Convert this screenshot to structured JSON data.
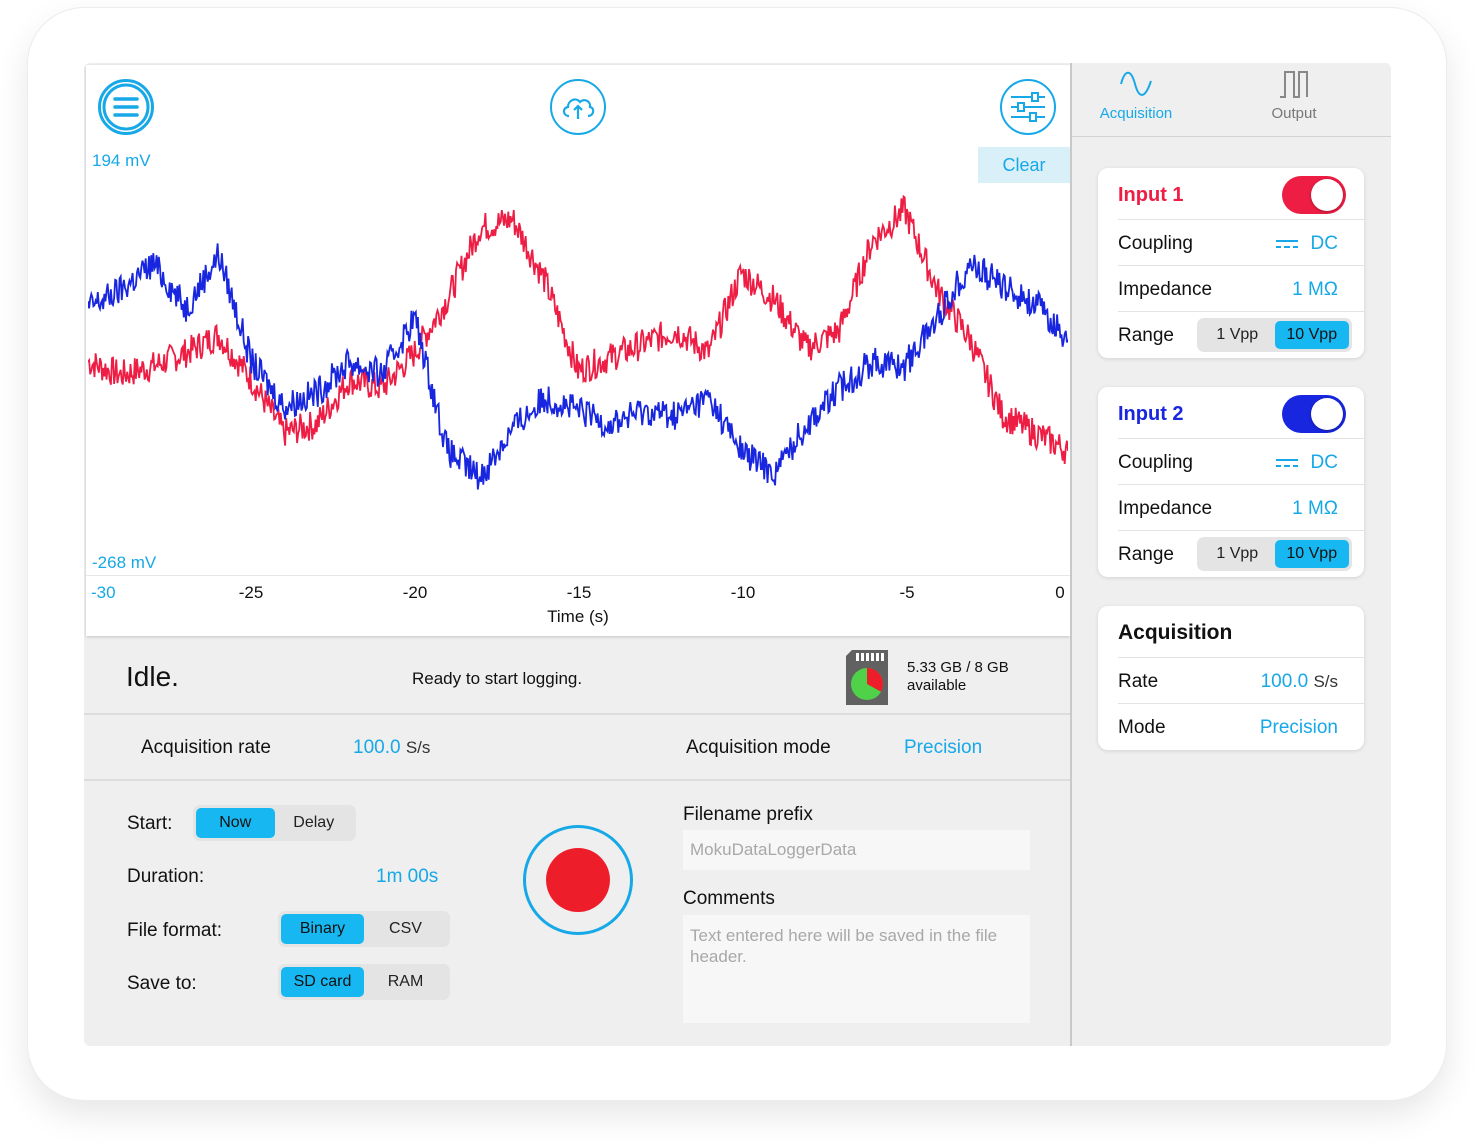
{
  "colors": {
    "accent": "#17a8e8",
    "channel1": "#ee1d44",
    "channel2": "#1826e0",
    "record": "#ee1d2a"
  },
  "toolbar": {
    "menu_icon": "menu-icon",
    "upload_icon": "cloud-upload-icon",
    "settings_icon": "sliders-icon",
    "clear_label": "Clear"
  },
  "chart_data": {
    "type": "line",
    "ymax_label": "194 mV",
    "ymin_label": "-268 mV",
    "ylim": [
      -268,
      194
    ],
    "xlim": [
      -30,
      0
    ],
    "x_ticks": [
      "-30",
      "-25",
      "-20",
      "-15",
      "-10",
      "-5",
      "0"
    ],
    "xlabel": "Time (s)",
    "series": [
      {
        "color": "#ee1d44",
        "x": [
          -30,
          -29,
          -28,
          -27,
          -26,
          -25,
          -24,
          -23,
          -22,
          -21,
          -20,
          -19,
          -18,
          -17,
          -16,
          -15,
          -14,
          -13,
          -12,
          -11,
          -10,
          -9,
          -8,
          -7,
          -6,
          -5,
          -4,
          -3,
          -2,
          -1,
          0
        ],
        "y": [
          -40,
          -55,
          -45,
          -30,
          -10,
          -60,
          -120,
          -110,
          -60,
          -70,
          -30,
          30,
          110,
          120,
          50,
          -50,
          -35,
          -20,
          -5,
          -30,
          60,
          30,
          -25,
          -5,
          95,
          130,
          40,
          -15,
          -100,
          -120,
          -140
        ]
      },
      {
        "color": "#1826e0",
        "x": [
          -30,
          -29,
          -28,
          -27,
          -26,
          -25,
          -24,
          -23,
          -22,
          -21,
          -20,
          -19,
          -18,
          -17,
          -16,
          -15,
          -14,
          -13,
          -12,
          -11,
          -10,
          -9,
          -8,
          -7,
          -6,
          -5,
          -4,
          -3,
          -2,
          -1,
          0
        ],
        "y": [
          20,
          40,
          70,
          20,
          80,
          -40,
          -90,
          -75,
          -40,
          -55,
          10,
          -140,
          -170,
          -115,
          -80,
          -95,
          -110,
          -95,
          -100,
          -80,
          -140,
          -165,
          -110,
          -70,
          -40,
          -45,
          10,
          70,
          45,
          25,
          -15
        ]
      }
    ]
  },
  "status": {
    "state": "Idle.",
    "message": "Ready to start logging.",
    "storage_line1": "5.33 GB / 8 GB",
    "storage_line2": "available",
    "storage_used_fraction": 0.33
  },
  "acquisition_bar": {
    "rate_label": "Acquisition rate",
    "rate_value": "100.0",
    "rate_unit": "S/s",
    "mode_label": "Acquisition mode",
    "mode_value": "Precision"
  },
  "controls": {
    "start_label": "Start:",
    "start_options": [
      "Now",
      "Delay"
    ],
    "duration_label": "Duration:",
    "duration_value": "1m 00s",
    "format_label": "File format:",
    "format_options": [
      "Binary",
      "CSV"
    ],
    "save_label": "Save to:",
    "save_options": [
      "SD card",
      "RAM"
    ],
    "filename_label": "Filename prefix",
    "filename_placeholder": "MokuDataLoggerData",
    "comments_label": "Comments",
    "comments_placeholder": "Text entered here will be saved in the file header."
  },
  "side": {
    "tabs": [
      {
        "label": "Acquisition",
        "icon": "sine-wave-icon"
      },
      {
        "label": "Output",
        "icon": "square-wave-icon"
      }
    ],
    "input1": {
      "title": "Input 1",
      "coupling_label": "Coupling",
      "coupling_value": "DC",
      "impedance_label": "Impedance",
      "impedance_value": "1 MΩ",
      "range_label": "Range",
      "range_options": [
        "1 Vpp",
        "10 Vpp"
      ]
    },
    "input2": {
      "title": "Input 2",
      "coupling_label": "Coupling",
      "coupling_value": "DC",
      "impedance_label": "Impedance",
      "impedance_value": "1 MΩ",
      "range_label": "Range",
      "range_options": [
        "1 Vpp",
        "10 Vpp"
      ]
    },
    "acquisition": {
      "title": "Acquisition",
      "rate_label": "Rate",
      "rate_value": "100.0",
      "rate_unit": "S/s",
      "mode_label": "Mode",
      "mode_value": "Precision"
    }
  }
}
